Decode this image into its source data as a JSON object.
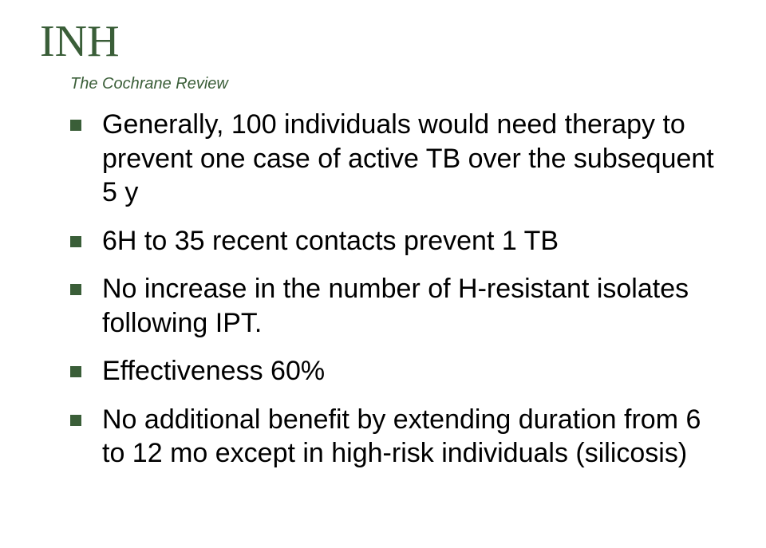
{
  "title": "INH",
  "subtitle": "The Cochrane Review",
  "bullets": [
    "Generally, 100 individuals would need therapy to prevent one case of active TB over the subsequent 5 y",
    "6H to 35 recent contacts  prevent 1 TB",
    "No increase in the number of H-resistant isolates following IPT.",
    "Effectiveness 60%",
    "No additional benefit by extending duration from 6 to 12 mo except in high-risk individuals (silicosis)"
  ],
  "colors": {
    "accent": "#3a5e38",
    "text": "#000000",
    "background": "#ffffff"
  },
  "fontsize": {
    "title": 56,
    "subtitle": 20,
    "bullet": 34
  }
}
